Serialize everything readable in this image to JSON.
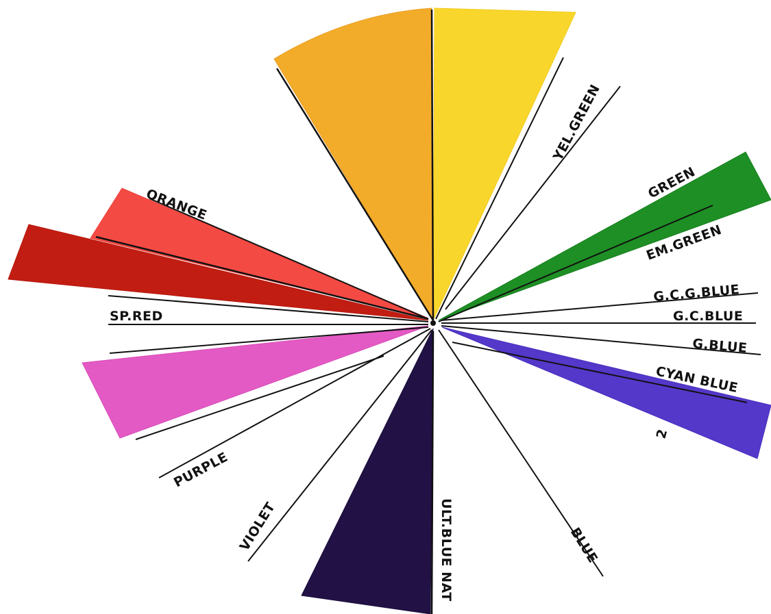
{
  "wheel": {
    "wedges": [
      {
        "id": "orange-yellow",
        "color": "#F3AC2A",
        "shade": "#E89C22"
      },
      {
        "id": "yellow",
        "color": "#F8D62C",
        "shade": "#F2CB1E"
      },
      {
        "id": "green",
        "color": "#1E8F25",
        "shade": "#17801E"
      },
      {
        "id": "cyan-blue",
        "color": "#5438C9",
        "shade": "#4A2FBE"
      },
      {
        "id": "ult-blue",
        "color": "#221145",
        "shade": "#1B0D3A"
      },
      {
        "id": "purple",
        "color": "#E35AC5",
        "shade": "#D94CB9"
      },
      {
        "id": "sp-red",
        "color": "#C21D12",
        "shade": "#B5170D"
      },
      {
        "id": "orange",
        "color": "#F44A44",
        "shade": "#EE3E38"
      }
    ],
    "labels": {
      "yel_green": "YEL.GREEN",
      "green": "GREEN",
      "em_green": "EM.GREEN",
      "gcg_blue": "G.C.G.BLUE",
      "gc_blue": "G.C.BLUE",
      "g_blue": "G.BLUE",
      "cyan_blue": "CYAN BLUE",
      "number_two": "2",
      "blue": "BLUE",
      "ult_blue_nat": "ULT.BLUE NAT",
      "violet": "VIOLET",
      "purple": "PURPLE",
      "sp_red": "SP.RED",
      "orange": "ORANGE"
    }
  }
}
